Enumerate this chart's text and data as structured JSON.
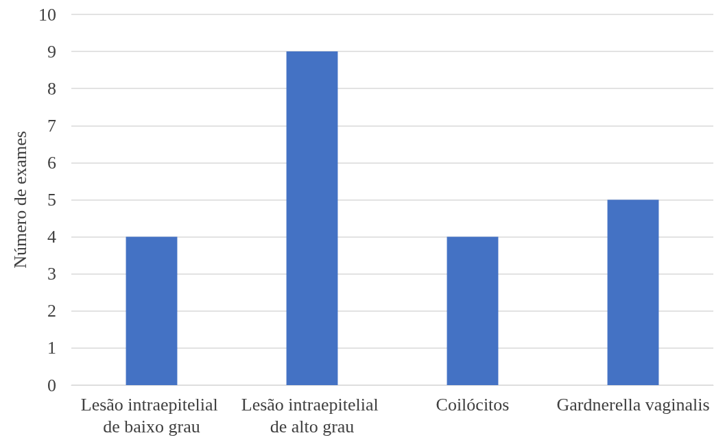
{
  "chart_data": {
    "type": "bar",
    "ylabel": "Número de exames",
    "categories": [
      "Lesão intraepitelial de baixo grau",
      "Lesão intraepitelial de alto grau",
      "Coilócitos",
      "Gardnerella vaginalis"
    ],
    "values": [
      4,
      9,
      4,
      5
    ],
    "color": "#4472c4",
    "ylim": [
      0,
      10
    ],
    "yticks": [
      0,
      1,
      2,
      3,
      4,
      5,
      6,
      7,
      8,
      9,
      10
    ],
    "grid": "y"
  }
}
